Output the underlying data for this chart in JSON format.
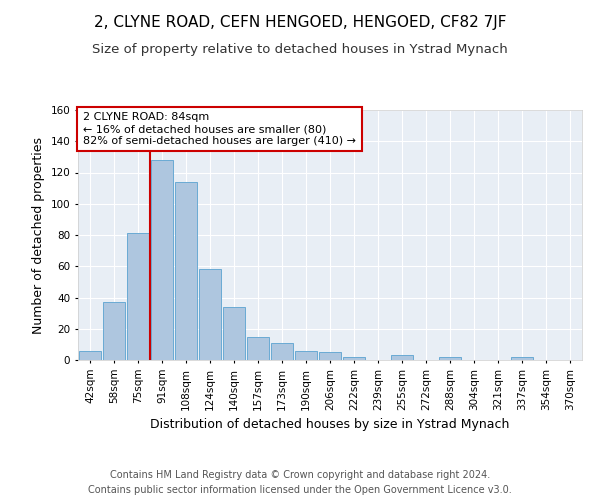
{
  "title": "2, CLYNE ROAD, CEFN HENGOED, HENGOED, CF82 7JF",
  "subtitle": "Size of property relative to detached houses in Ystrad Mynach",
  "xlabel": "Distribution of detached houses by size in Ystrad Mynach",
  "ylabel": "Number of detached properties",
  "categories": [
    "42sqm",
    "58sqm",
    "75sqm",
    "91sqm",
    "108sqm",
    "124sqm",
    "140sqm",
    "157sqm",
    "173sqm",
    "190sqm",
    "206sqm",
    "222sqm",
    "239sqm",
    "255sqm",
    "272sqm",
    "288sqm",
    "304sqm",
    "321sqm",
    "337sqm",
    "354sqm",
    "370sqm"
  ],
  "values": [
    6,
    37,
    81,
    128,
    114,
    58,
    34,
    15,
    11,
    6,
    5,
    2,
    0,
    3,
    0,
    2,
    0,
    0,
    2,
    0,
    0
  ],
  "bar_color": "#aec6df",
  "bar_edge_color": "#6aaad4",
  "reference_line_color": "#cc0000",
  "annotation_text": "2 CLYNE ROAD: 84sqm\n← 16% of detached houses are smaller (80)\n82% of semi-detached houses are larger (410) →",
  "annotation_box_edgecolor": "#cc0000",
  "ylim": [
    0,
    160
  ],
  "yticks": [
    0,
    20,
    40,
    60,
    80,
    100,
    120,
    140,
    160
  ],
  "background_color": "#e8eef5",
  "grid_color": "#ffffff",
  "footer_line1": "Contains HM Land Registry data © Crown copyright and database right 2024.",
  "footer_line2": "Contains public sector information licensed under the Open Government Licence v3.0.",
  "title_fontsize": 11,
  "subtitle_fontsize": 9.5,
  "xlabel_fontsize": 9,
  "ylabel_fontsize": 9,
  "tick_fontsize": 7.5,
  "annotation_fontsize": 8,
  "footer_fontsize": 7
}
